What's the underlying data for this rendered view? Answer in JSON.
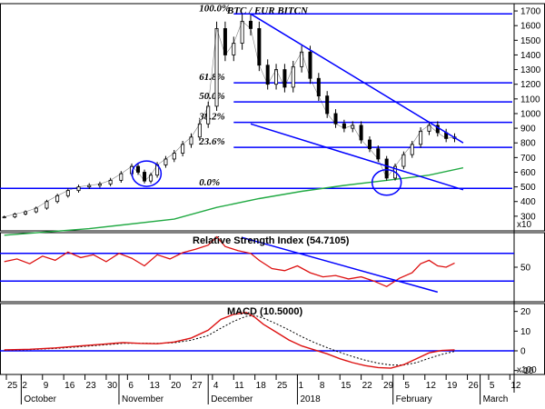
{
  "chart_data": [
    {
      "type": "candlestick",
      "title": "BTC / EUR BITCN",
      "ylim": [
        200,
        1750
      ],
      "y_ticks": [
        300,
        400,
        500,
        600,
        700,
        800,
        900,
        1000,
        1100,
        1200,
        1300,
        1400,
        1500,
        1600,
        1700
      ],
      "y_multiplier_label": "x10",
      "fib_levels": [
        {
          "label": "100.0%",
          "value": 1680
        },
        {
          "label": "61.8%",
          "value": 1210
        },
        {
          "label": "50.0%",
          "value": 1080
        },
        {
          "label": "38.2%",
          "value": 940
        },
        {
          "label": "23.6%",
          "value": 770
        },
        {
          "label": "0.0%",
          "value": 490
        }
      ],
      "moving_average": [
        {
          "x": 0,
          "y": 170
        },
        {
          "x": 40,
          "y": 215
        },
        {
          "x": 80,
          "y": 280
        },
        {
          "x": 100,
          "y": 360
        },
        {
          "x": 120,
          "y": 420
        },
        {
          "x": 140,
          "y": 470
        },
        {
          "x": 160,
          "y": 510
        },
        {
          "x": 180,
          "y": 545
        },
        {
          "x": 200,
          "y": 580
        },
        {
          "x": 216,
          "y": 630
        }
      ],
      "close": [
        {
          "x": 0,
          "y": 295
        },
        {
          "x": 5,
          "y": 315
        },
        {
          "x": 10,
          "y": 330
        },
        {
          "x": 15,
          "y": 355
        },
        {
          "x": 20,
          "y": 400
        },
        {
          "x": 25,
          "y": 440
        },
        {
          "x": 30,
          "y": 475
        },
        {
          "x": 35,
          "y": 500
        },
        {
          "x": 40,
          "y": 510
        },
        {
          "x": 45,
          "y": 520
        },
        {
          "x": 50,
          "y": 545
        },
        {
          "x": 55,
          "y": 590
        },
        {
          "x": 60,
          "y": 640
        },
        {
          "x": 63,
          "y": 600
        },
        {
          "x": 66,
          "y": 540
        },
        {
          "x": 69,
          "y": 580
        },
        {
          "x": 72,
          "y": 650
        },
        {
          "x": 76,
          "y": 690
        },
        {
          "x": 80,
          "y": 730
        },
        {
          "x": 84,
          "y": 790
        },
        {
          "x": 88,
          "y": 840
        },
        {
          "x": 92,
          "y": 930
        },
        {
          "x": 96,
          "y": 1050
        },
        {
          "x": 100,
          "y": 1580
        },
        {
          "x": 104,
          "y": 1400
        },
        {
          "x": 108,
          "y": 1480
        },
        {
          "x": 112,
          "y": 1630
        },
        {
          "x": 116,
          "y": 1580
        },
        {
          "x": 120,
          "y": 1330
        },
        {
          "x": 124,
          "y": 1200
        },
        {
          "x": 128,
          "y": 1300
        },
        {
          "x": 132,
          "y": 1180
        },
        {
          "x": 136,
          "y": 1320
        },
        {
          "x": 140,
          "y": 1420
        },
        {
          "x": 144,
          "y": 1240
        },
        {
          "x": 148,
          "y": 1120
        },
        {
          "x": 152,
          "y": 1000
        },
        {
          "x": 156,
          "y": 930
        },
        {
          "x": 160,
          "y": 900
        },
        {
          "x": 164,
          "y": 920
        },
        {
          "x": 168,
          "y": 820
        },
        {
          "x": 172,
          "y": 760
        },
        {
          "x": 176,
          "y": 690
        },
        {
          "x": 180,
          "y": 560
        },
        {
          "x": 184,
          "y": 640
        },
        {
          "x": 188,
          "y": 720
        },
        {
          "x": 192,
          "y": 790
        },
        {
          "x": 196,
          "y": 880
        },
        {
          "x": 200,
          "y": 920
        },
        {
          "x": 204,
          "y": 870
        },
        {
          "x": 208,
          "y": 830
        },
        {
          "x": 212,
          "y": 840
        }
      ],
      "trend_channel_upper": [
        {
          "x": 116,
          "y": 1680
        },
        {
          "x": 216,
          "y": 800
        }
      ],
      "trend_channel_lower": [
        {
          "x": 116,
          "y": 930
        },
        {
          "x": 216,
          "y": 480
        }
      ],
      "ellipse_markers": [
        {
          "x": 67,
          "y": 590
        },
        {
          "x": 180,
          "y": 530
        }
      ]
    },
    {
      "type": "line",
      "title": "Relative Strength Index (54.7105)",
      "ylim": [
        0,
        100
      ],
      "y_ticks": [
        50
      ],
      "levels": [
        70,
        30
      ],
      "series": [
        {
          "values": [
            {
              "x": 0,
              "y": 58
            },
            {
              "x": 6,
              "y": 62
            },
            {
              "x": 12,
              "y": 55
            },
            {
              "x": 18,
              "y": 66
            },
            {
              "x": 24,
              "y": 60
            },
            {
              "x": 30,
              "y": 72
            },
            {
              "x": 36,
              "y": 64
            },
            {
              "x": 42,
              "y": 68
            },
            {
              "x": 48,
              "y": 58
            },
            {
              "x": 54,
              "y": 70
            },
            {
              "x": 60,
              "y": 63
            },
            {
              "x": 66,
              "y": 52
            },
            {
              "x": 72,
              "y": 68
            },
            {
              "x": 78,
              "y": 62
            },
            {
              "x": 84,
              "y": 71
            },
            {
              "x": 90,
              "y": 76
            },
            {
              "x": 96,
              "y": 82
            },
            {
              "x": 100,
              "y": 94
            },
            {
              "x": 104,
              "y": 80
            },
            {
              "x": 110,
              "y": 74
            },
            {
              "x": 116,
              "y": 70
            },
            {
              "x": 120,
              "y": 60
            },
            {
              "x": 126,
              "y": 48
            },
            {
              "x": 132,
              "y": 45
            },
            {
              "x": 138,
              "y": 52
            },
            {
              "x": 144,
              "y": 42
            },
            {
              "x": 150,
              "y": 36
            },
            {
              "x": 156,
              "y": 38
            },
            {
              "x": 162,
              "y": 33
            },
            {
              "x": 168,
              "y": 36
            },
            {
              "x": 174,
              "y": 30
            },
            {
              "x": 180,
              "y": 22
            },
            {
              "x": 186,
              "y": 34
            },
            {
              "x": 192,
              "y": 42
            },
            {
              "x": 196,
              "y": 55
            },
            {
              "x": 200,
              "y": 60
            },
            {
              "x": 204,
              "y": 52
            },
            {
              "x": 208,
              "y": 50
            },
            {
              "x": 212,
              "y": 56
            }
          ]
        }
      ],
      "trendline": [
        {
          "x": 112,
          "y": 93
        },
        {
          "x": 204,
          "y": 14
        }
      ]
    },
    {
      "type": "line",
      "title": "MACD (10.5000)",
      "ylim": [
        -12,
        24
      ],
      "y_ticks": [
        20,
        10,
        0,
        -10
      ],
      "y_multiplier_label": "x100",
      "zero_line": 0,
      "series": [
        {
          "values": [
            {
              "x": 0,
              "y": 0.5
            },
            {
              "x": 12,
              "y": 0.8
            },
            {
              "x": 24,
              "y": 1.5
            },
            {
              "x": 36,
              "y": 2.5
            },
            {
              "x": 48,
              "y": 3.5
            },
            {
              "x": 56,
              "y": 4.2
            },
            {
              "x": 64,
              "y": 3.8
            },
            {
              "x": 72,
              "y": 3.6
            },
            {
              "x": 80,
              "y": 4.5
            },
            {
              "x": 88,
              "y": 6.5
            },
            {
              "x": 96,
              "y": 10.5
            },
            {
              "x": 102,
              "y": 16
            },
            {
              "x": 108,
              "y": 18.5
            },
            {
              "x": 114,
              "y": 19.5
            },
            {
              "x": 118,
              "y": 17
            },
            {
              "x": 122,
              "y": 13.5
            },
            {
              "x": 128,
              "y": 9.5
            },
            {
              "x": 134,
              "y": 5.5
            },
            {
              "x": 140,
              "y": 2.5
            },
            {
              "x": 146,
              "y": 0.5
            },
            {
              "x": 152,
              "y": -1.5
            },
            {
              "x": 158,
              "y": -4
            },
            {
              "x": 164,
              "y": -6
            },
            {
              "x": 170,
              "y": -7.5
            },
            {
              "x": 176,
              "y": -8.5
            },
            {
              "x": 182,
              "y": -8.8
            },
            {
              "x": 188,
              "y": -7
            },
            {
              "x": 194,
              "y": -4
            },
            {
              "x": 200,
              "y": -1
            },
            {
              "x": 206,
              "y": 0.2
            },
            {
              "x": 212,
              "y": 0.5
            }
          ]
        },
        {
          "values": [
            {
              "x": 0,
              "y": 0.3
            },
            {
              "x": 12,
              "y": 0.6
            },
            {
              "x": 24,
              "y": 1.2
            },
            {
              "x": 36,
              "y": 2.1
            },
            {
              "x": 48,
              "y": 3.1
            },
            {
              "x": 56,
              "y": 3.8
            },
            {
              "x": 64,
              "y": 3.9
            },
            {
              "x": 72,
              "y": 3.8
            },
            {
              "x": 80,
              "y": 4.1
            },
            {
              "x": 88,
              "y": 5.4
            },
            {
              "x": 96,
              "y": 7.8
            },
            {
              "x": 102,
              "y": 11.5
            },
            {
              "x": 108,
              "y": 15
            },
            {
              "x": 114,
              "y": 17.6
            },
            {
              "x": 118,
              "y": 17.9
            },
            {
              "x": 122,
              "y": 16.6
            },
            {
              "x": 128,
              "y": 13.8
            },
            {
              "x": 134,
              "y": 10.6
            },
            {
              "x": 140,
              "y": 7.2
            },
            {
              "x": 146,
              "y": 4.2
            },
            {
              "x": 152,
              "y": 1.6
            },
            {
              "x": 158,
              "y": -0.8
            },
            {
              "x": 164,
              "y": -2.9
            },
            {
              "x": 170,
              "y": -4.8
            },
            {
              "x": 176,
              "y": -6.3
            },
            {
              "x": 182,
              "y": -7.2
            },
            {
              "x": 188,
              "y": -7.2
            },
            {
              "x": 194,
              "y": -6.0
            },
            {
              "x": 200,
              "y": -3.8
            },
            {
              "x": 206,
              "y": -1.8
            },
            {
              "x": 212,
              "y": -0.3
            }
          ]
        }
      ]
    }
  ],
  "x_axis": {
    "day_ticks": [
      {
        "x": 1,
        "label": "25"
      },
      {
        "x": 8,
        "label": "2"
      },
      {
        "x": 18,
        "label": "9"
      },
      {
        "x": 28,
        "label": "16"
      },
      {
        "x": 38,
        "label": "23"
      },
      {
        "x": 48,
        "label": "30"
      },
      {
        "x": 58,
        "label": "6"
      },
      {
        "x": 68,
        "label": "13"
      },
      {
        "x": 78,
        "label": "20"
      },
      {
        "x": 88,
        "label": "27"
      },
      {
        "x": 98,
        "label": "4"
      },
      {
        "x": 108,
        "label": "11"
      },
      {
        "x": 118,
        "label": "18"
      },
      {
        "x": 128,
        "label": "25"
      },
      {
        "x": 138,
        "label": "1"
      },
      {
        "x": 148,
        "label": "8"
      },
      {
        "x": 158,
        "label": "15"
      },
      {
        "x": 168,
        "label": "22"
      },
      {
        "x": 178,
        "label": "29"
      },
      {
        "x": 188,
        "label": "5"
      },
      {
        "x": 198,
        "label": "12"
      },
      {
        "x": 208,
        "label": "19"
      },
      {
        "x": 218,
        "label": "26"
      },
      {
        "x": 228,
        "label": "5"
      },
      {
        "x": 238,
        "label": "12"
      }
    ],
    "month_labels": [
      {
        "x": 8,
        "label": "October"
      },
      {
        "x": 54,
        "label": "November"
      },
      {
        "x": 96,
        "label": "December"
      },
      {
        "x": 138,
        "label": "2018"
      },
      {
        "x": 183,
        "label": "February"
      },
      {
        "x": 224,
        "label": "March"
      }
    ]
  },
  "colors": {
    "price": "#000000",
    "blue_lines": "#0000ff",
    "moving_average": "#22aa44",
    "rsi": "#dd1111",
    "macd": "#dd1111",
    "signal": "#000000",
    "grid_border": "#000000"
  }
}
